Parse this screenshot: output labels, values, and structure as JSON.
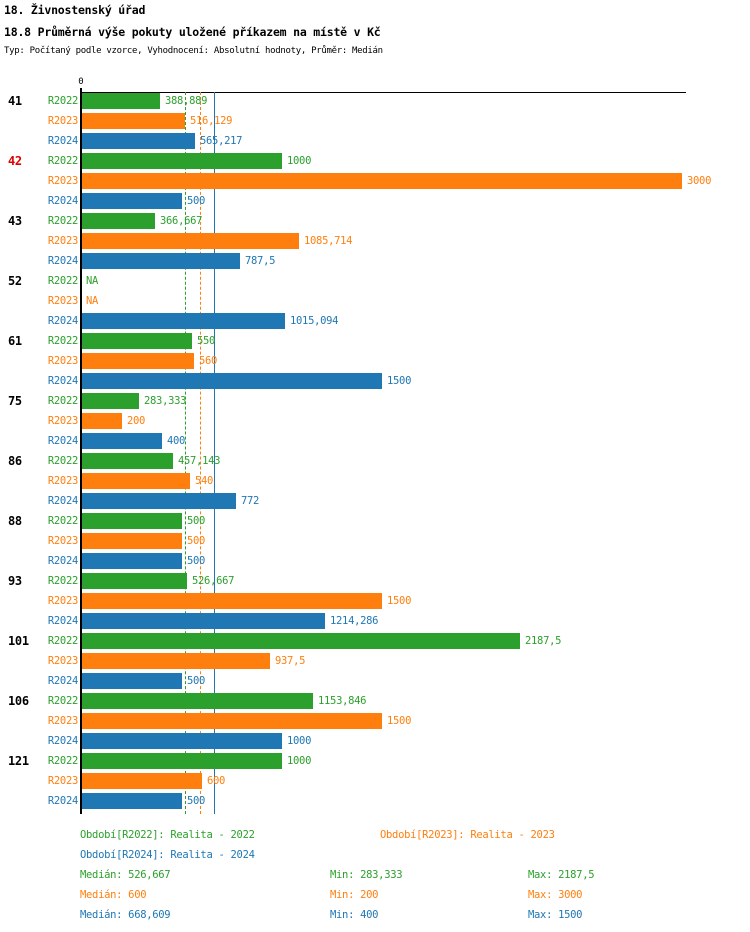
{
  "header": {
    "title1": "18. Živnostenský úřad",
    "title2": "18.8 Průměrná výše pokuty uložené příkazem na místě v Kč",
    "meta": "Typ: Počítaný podle vzorce, Vyhodnocení: Absolutní hodnoty, Průměr: Medián"
  },
  "chart_data": {
    "type": "bar",
    "orientation": "horizontal",
    "title": "18.8 Průměrná výše pokuty uložené příkazem na místě v Kč",
    "x_axis": {
      "min": 0,
      "max": 3000,
      "zero_label": "0",
      "grid": false
    },
    "categories": [
      "41",
      "42",
      "43",
      "52",
      "61",
      "75",
      "86",
      "88",
      "93",
      "101",
      "106",
      "121"
    ],
    "highlighted_category": "42",
    "highlight_color": "#dd0000",
    "category_color": "#000000",
    "missing_text": "NA",
    "series": [
      {
        "name": "R2022",
        "color": "#2ca02c",
        "values": [
          388.889,
          1000,
          366.667,
          null,
          550,
          283.333,
          457.143,
          500,
          526.667,
          2187.5,
          1153.846,
          1000
        ],
        "labels": [
          "388,889",
          "1000",
          "366,667",
          "NA",
          "550",
          "283,333",
          "457,143",
          "500",
          "526,667",
          "2187,5",
          "1153,846",
          "1000"
        ],
        "median": 526.667,
        "median_line_style": "dashed"
      },
      {
        "name": "R2023",
        "color": "#ff7f0e",
        "values": [
          516.129,
          3000,
          1085.714,
          null,
          560,
          200,
          540,
          500,
          1500,
          937.5,
          1500,
          600
        ],
        "labels": [
          "516,129",
          "3000",
          "1085,714",
          "NA",
          "560",
          "200",
          "540",
          "500",
          "1500",
          "937,5",
          "1500",
          "600"
        ],
        "median": 600,
        "median_line_style": "dashed"
      },
      {
        "name": "R2024",
        "color": "#1f77b4",
        "values": [
          565.217,
          500,
          787.5,
          1015.094,
          1500,
          400,
          772,
          500,
          1214.286,
          500,
          1000,
          500
        ],
        "labels": [
          "565,217",
          "500",
          "787,5",
          "1015,094",
          "1500",
          "400",
          "772",
          "500",
          "1214,286",
          "500",
          "1000",
          "500"
        ],
        "median": 668.609,
        "median_line_style": "solid"
      }
    ]
  },
  "legend": {
    "items": [
      {
        "label": "Období[R2022]: Realita - 2022",
        "color": "#2ca02c"
      },
      {
        "label": "Období[R2023]: Realita - 2023",
        "color": "#ff7f0e"
      },
      {
        "label": "Období[R2024]: Realita - 2024",
        "color": "#1f77b4"
      }
    ],
    "stats": [
      {
        "median": "Medián: 526,667",
        "min": "Min: 283,333",
        "max": "Max: 2187,5",
        "color": "#2ca02c"
      },
      {
        "median": "Medián: 600",
        "min": "Min: 200",
        "max": "Max: 3000",
        "color": "#ff7f0e"
      },
      {
        "median": "Medián: 668,609",
        "min": "Min: 400",
        "max": "Max: 1500",
        "color": "#1f77b4"
      }
    ]
  }
}
